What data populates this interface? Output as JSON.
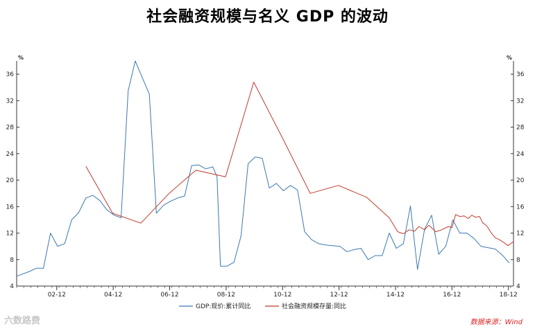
{
  "title": "社会融资规模与名义 GDP 的波动",
  "source_note": "数据来源：Wind",
  "watermark": "六数路费",
  "chart_data": {
    "type": "line",
    "unit_left": "%",
    "unit_right": "%",
    "ylim": [
      4,
      38
    ],
    "yticks": [
      4,
      8,
      12,
      16,
      20,
      24,
      28,
      32,
      36
    ],
    "xlim": [
      2001.5,
      2019.1
    ],
    "xticks": [
      {
        "x": 2002.92,
        "label": "02-12"
      },
      {
        "x": 2004.92,
        "label": "04-12"
      },
      {
        "x": 2006.92,
        "label": "06-12"
      },
      {
        "x": 2008.92,
        "label": "08-12"
      },
      {
        "x": 2010.92,
        "label": "10-12"
      },
      {
        "x": 2012.92,
        "label": "12-12"
      },
      {
        "x": 2014.92,
        "label": "14-12"
      },
      {
        "x": 2016.92,
        "label": "16-12"
      },
      {
        "x": 2018.92,
        "label": "18-12"
      }
    ],
    "legend_position": "bottom",
    "series": [
      {
        "name": "GDP:现价:累计同比",
        "color": "#3a78b0",
        "points": [
          [
            2001.5,
            5.5
          ],
          [
            2001.95,
            6.2
          ],
          [
            2002.2,
            6.7
          ],
          [
            2002.45,
            6.7
          ],
          [
            2002.7,
            12.0
          ],
          [
            2002.95,
            10.0
          ],
          [
            2003.2,
            10.4
          ],
          [
            2003.45,
            14.0
          ],
          [
            2003.7,
            15.1
          ],
          [
            2003.95,
            17.3
          ],
          [
            2004.2,
            17.7
          ],
          [
            2004.45,
            16.9
          ],
          [
            2004.7,
            15.5
          ],
          [
            2004.95,
            14.7
          ],
          [
            2005.2,
            14.3
          ],
          [
            2005.45,
            33.5
          ],
          [
            2005.7,
            38.0
          ],
          [
            2005.95,
            35.5
          ],
          [
            2006.2,
            33.0
          ],
          [
            2006.45,
            15.0
          ],
          [
            2006.7,
            16.2
          ],
          [
            2006.95,
            16.8
          ],
          [
            2007.2,
            17.3
          ],
          [
            2007.45,
            17.6
          ],
          [
            2007.7,
            22.2
          ],
          [
            2007.95,
            22.3
          ],
          [
            2008.2,
            21.7
          ],
          [
            2008.45,
            22.0
          ],
          [
            2008.6,
            20.5
          ],
          [
            2008.72,
            7.0
          ],
          [
            2008.95,
            7.0
          ],
          [
            2009.2,
            7.6
          ],
          [
            2009.45,
            11.6
          ],
          [
            2009.7,
            22.5
          ],
          [
            2009.95,
            23.5
          ],
          [
            2010.2,
            23.3
          ],
          [
            2010.45,
            18.8
          ],
          [
            2010.7,
            19.5
          ],
          [
            2010.95,
            18.4
          ],
          [
            2011.2,
            19.2
          ],
          [
            2011.45,
            18.5
          ],
          [
            2011.7,
            12.2
          ],
          [
            2011.95,
            11.0
          ],
          [
            2012.2,
            10.4
          ],
          [
            2012.45,
            10.2
          ],
          [
            2012.7,
            10.1
          ],
          [
            2012.95,
            10.0
          ],
          [
            2013.2,
            9.2
          ],
          [
            2013.45,
            9.5
          ],
          [
            2013.7,
            9.7
          ],
          [
            2013.95,
            8.0
          ],
          [
            2014.2,
            8.6
          ],
          [
            2014.45,
            8.6
          ],
          [
            2014.7,
            12.0
          ],
          [
            2014.95,
            9.7
          ],
          [
            2015.2,
            10.4
          ],
          [
            2015.45,
            16.1
          ],
          [
            2015.7,
            6.5
          ],
          [
            2015.95,
            12.6
          ],
          [
            2016.2,
            14.7
          ],
          [
            2016.45,
            8.8
          ],
          [
            2016.7,
            10.0
          ],
          [
            2016.95,
            14.0
          ],
          [
            2017.2,
            12.0
          ],
          [
            2017.45,
            12.0
          ],
          [
            2017.7,
            11.2
          ],
          [
            2017.95,
            10.0
          ],
          [
            2018.2,
            9.8
          ],
          [
            2018.45,
            9.6
          ],
          [
            2018.7,
            8.7
          ],
          [
            2018.95,
            7.5
          ]
        ]
      },
      {
        "name": "社会融资规模存量:同比",
        "color": "#c0392b",
        "points": [
          [
            2003.95,
            22.1
          ],
          [
            2004.9,
            15.0
          ],
          [
            2005.9,
            13.5
          ],
          [
            2006.9,
            18.0
          ],
          [
            2007.85,
            21.5
          ],
          [
            2008.9,
            20.5
          ],
          [
            2009.9,
            34.8
          ],
          [
            2010.9,
            26.5
          ],
          [
            2011.9,
            18.0
          ],
          [
            2012.9,
            19.2
          ],
          [
            2013.9,
            17.4
          ],
          [
            2014.7,
            14.3
          ],
          [
            2015.0,
            12.2
          ],
          [
            2015.2,
            11.9
          ],
          [
            2015.4,
            12.5
          ],
          [
            2015.6,
            12.3
          ],
          [
            2015.75,
            13.0
          ],
          [
            2015.95,
            12.5
          ],
          [
            2016.1,
            13.2
          ],
          [
            2016.35,
            12.2
          ],
          [
            2016.55,
            12.5
          ],
          [
            2016.8,
            13.0
          ],
          [
            2016.92,
            12.8
          ],
          [
            2017.05,
            14.8
          ],
          [
            2017.2,
            14.5
          ],
          [
            2017.35,
            14.6
          ],
          [
            2017.5,
            14.2
          ],
          [
            2017.62,
            14.7
          ],
          [
            2017.75,
            14.4
          ],
          [
            2017.9,
            14.5
          ],
          [
            2018.0,
            13.6
          ],
          [
            2018.15,
            13.1
          ],
          [
            2018.3,
            12.1
          ],
          [
            2018.45,
            11.3
          ],
          [
            2018.6,
            11.0
          ],
          [
            2018.75,
            10.6
          ],
          [
            2018.9,
            10.1
          ],
          [
            2019.0,
            10.4
          ],
          [
            2019.1,
            10.7
          ]
        ]
      }
    ]
  }
}
